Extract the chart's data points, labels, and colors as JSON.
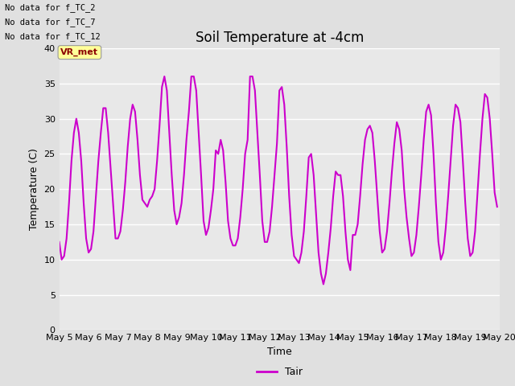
{
  "title": "Soil Temperature at -4cm",
  "xlabel": "Time",
  "ylabel": "Temperature (C)",
  "ylim": [
    0,
    40
  ],
  "xlim_days": [
    5,
    20
  ],
  "xtick_labels": [
    "May 5",
    "May 6",
    "May 7",
    "May 8",
    "May 9",
    "May 10",
    "May 11",
    "May 12",
    "May 13",
    "May 14",
    "May 15",
    "May 16",
    "May 17",
    "May 18",
    "May 19",
    "May 20"
  ],
  "legend_label": "Tair",
  "line_color": "#CC00CC",
  "line_width": 1.5,
  "plot_bg_color": "#E8E8E8",
  "fig_bg_color": "#E0E0E0",
  "grid_color": "#FFFFFF",
  "no_data_texts": [
    "No data for f_TC_2",
    "No data for f_TC_7",
    "No data for f_TC_12"
  ],
  "vr_met_label": "VR_met",
  "title_fontsize": 12,
  "axis_fontsize": 9,
  "tick_fontsize": 8,
  "yticks": [
    0,
    5,
    10,
    15,
    20,
    25,
    30,
    35,
    40
  ],
  "data_x": [
    5.0,
    5.083,
    5.167,
    5.25,
    5.333,
    5.417,
    5.5,
    5.583,
    5.667,
    5.75,
    5.833,
    5.917,
    6.0,
    6.083,
    6.167,
    6.25,
    6.333,
    6.417,
    6.5,
    6.583,
    6.667,
    6.75,
    6.833,
    6.917,
    7.0,
    7.083,
    7.167,
    7.25,
    7.333,
    7.417,
    7.5,
    7.583,
    7.667,
    7.75,
    7.833,
    7.917,
    8.0,
    8.083,
    8.167,
    8.25,
    8.333,
    8.417,
    8.5,
    8.583,
    8.667,
    8.75,
    8.833,
    8.917,
    9.0,
    9.083,
    9.167,
    9.25,
    9.333,
    9.417,
    9.5,
    9.583,
    9.667,
    9.75,
    9.833,
    9.917,
    10.0,
    10.083,
    10.167,
    10.25,
    10.333,
    10.417,
    10.5,
    10.583,
    10.667,
    10.75,
    10.833,
    10.917,
    11.0,
    11.083,
    11.167,
    11.25,
    11.333,
    11.417,
    11.5,
    11.583,
    11.667,
    11.75,
    11.833,
    11.917,
    12.0,
    12.083,
    12.167,
    12.25,
    12.333,
    12.417,
    12.5,
    12.583,
    12.667,
    12.75,
    12.833,
    12.917,
    13.0,
    13.083,
    13.167,
    13.25,
    13.333,
    13.417,
    13.5,
    13.583,
    13.667,
    13.75,
    13.833,
    13.917,
    14.0,
    14.083,
    14.167,
    14.25,
    14.333,
    14.417,
    14.5,
    14.583,
    14.667,
    14.75,
    14.833,
    14.917,
    15.0,
    15.083,
    15.167,
    15.25,
    15.333,
    15.417,
    15.5,
    15.583,
    15.667,
    15.75,
    15.833,
    15.917,
    16.0,
    16.083,
    16.167,
    16.25,
    16.333,
    16.417,
    16.5,
    16.583,
    16.667,
    16.75,
    16.833,
    16.917,
    17.0,
    17.083,
    17.167,
    17.25,
    17.333,
    17.417,
    17.5,
    17.583,
    17.667,
    17.75,
    17.833,
    17.917,
    18.0,
    18.083,
    18.167,
    18.25,
    18.333,
    18.417,
    18.5,
    18.583,
    18.667,
    18.75,
    18.833,
    18.917,
    19.0,
    19.083,
    19.167,
    19.25,
    19.333,
    19.417,
    19.5,
    19.583,
    19.667,
    19.75,
    19.833,
    19.917
  ],
  "data_y": [
    12.5,
    10.0,
    10.5,
    13.0,
    18.0,
    24.0,
    28.0,
    30.0,
    28.0,
    24.0,
    18.0,
    13.0,
    11.0,
    11.5,
    14.0,
    19.0,
    24.0,
    28.0,
    31.5,
    31.5,
    28.0,
    23.0,
    18.0,
    13.0,
    13.0,
    14.0,
    17.0,
    21.0,
    26.0,
    30.0,
    32.0,
    31.0,
    27.0,
    22.0,
    18.5,
    18.0,
    17.5,
    18.5,
    19.0,
    20.0,
    24.0,
    29.0,
    34.5,
    36.0,
    34.0,
    28.0,
    22.0,
    17.0,
    15.0,
    16.0,
    18.0,
    22.0,
    27.0,
    31.0,
    36.0,
    36.0,
    34.0,
    28.0,
    22.0,
    15.5,
    13.5,
    14.5,
    17.0,
    20.0,
    25.5,
    25.0,
    27.0,
    25.5,
    21.0,
    15.5,
    13.0,
    12.0,
    12.0,
    13.0,
    16.0,
    20.0,
    25.0,
    27.0,
    36.0,
    36.0,
    34.0,
    28.0,
    22.0,
    15.5,
    12.5,
    12.5,
    14.0,
    17.5,
    22.0,
    26.5,
    34.0,
    34.5,
    32.0,
    26.0,
    19.0,
    13.5,
    10.5,
    10.0,
    9.5,
    11.0,
    14.0,
    19.0,
    24.5,
    25.0,
    22.0,
    16.5,
    11.0,
    8.0,
    6.5,
    8.0,
    11.0,
    14.5,
    19.0,
    22.5,
    22.0,
    22.0,
    19.0,
    14.0,
    10.0,
    8.5,
    13.5,
    13.5,
    15.0,
    19.0,
    23.5,
    27.0,
    28.5,
    29.0,
    28.0,
    24.0,
    19.0,
    14.0,
    11.0,
    11.5,
    14.0,
    18.0,
    22.5,
    26.5,
    29.5,
    28.5,
    25.5,
    20.0,
    16.0,
    13.0,
    10.5,
    11.0,
    13.5,
    17.5,
    22.0,
    27.0,
    31.0,
    32.0,
    30.5,
    25.0,
    18.0,
    12.5,
    10.0,
    11.0,
    14.5,
    19.0,
    24.0,
    29.0,
    32.0,
    31.5,
    29.5,
    24.0,
    18.0,
    13.0,
    10.5,
    11.0,
    14.0,
    19.5,
    25.0,
    30.0,
    33.5,
    33.0,
    30.0,
    25.0,
    19.5,
    17.5
  ]
}
